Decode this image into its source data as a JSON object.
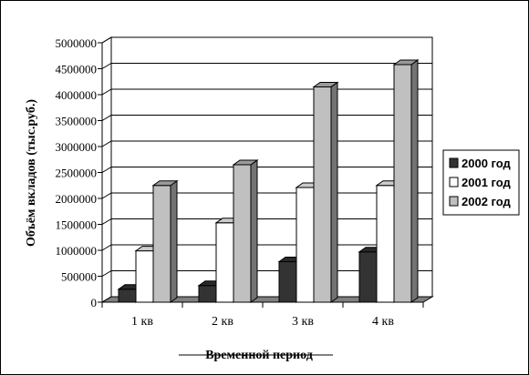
{
  "chart_data": {
    "type": "bar",
    "style": "3d-clustered-column",
    "title": "",
    "xlabel": "Временной период",
    "ylabel": "Объём вкладов (тыс.руб.)",
    "categories": [
      "1 кв",
      "2 кв",
      "3 кв",
      "4 кв"
    ],
    "ylim": [
      0,
      5000000
    ],
    "yticks": [
      0,
      500000,
      1000000,
      1500000,
      2000000,
      2500000,
      3000000,
      3500000,
      4000000,
      4500000,
      5000000
    ],
    "grid": true,
    "legend_position": "right",
    "series": [
      {
        "name": "2000 год",
        "color": "#333333",
        "values": [
          250000,
          320000,
          780000,
          970000
        ]
      },
      {
        "name": "2001 год",
        "color": "#ffffff",
        "values": [
          990000,
          1530000,
          2210000,
          2250000
        ]
      },
      {
        "name": "2002 год",
        "color": "#c0c0c0",
        "values": [
          2250000,
          2650000,
          4150000,
          4580000
        ]
      }
    ]
  }
}
